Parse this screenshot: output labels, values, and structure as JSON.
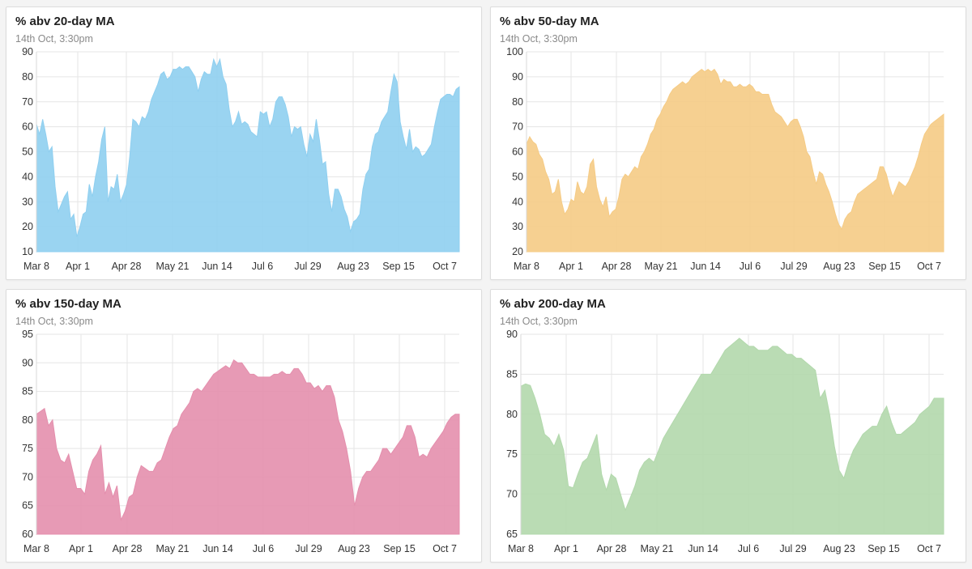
{
  "chart_data": [
    {
      "type": "area",
      "title": "% abv 20-day MA",
      "subtitle": "14th Oct, 3:30pm",
      "color": "#8fcff0",
      "ylim": [
        10,
        90
      ],
      "yticks": [
        10,
        20,
        30,
        40,
        50,
        60,
        70,
        80,
        90
      ],
      "xtick_labels": [
        "Mar 8",
        "Apr 1",
        "Apr 28",
        "May 21",
        "Jun 14",
        "Jul 6",
        "Jul 29",
        "Aug 23",
        "Sep 15",
        "Oct 7"
      ],
      "values": [
        61,
        57,
        63,
        57,
        50,
        52,
        36,
        26,
        29,
        32,
        34,
        23,
        25,
        16,
        20,
        25,
        26,
        37,
        32,
        40,
        46,
        55,
        60,
        30,
        36,
        35,
        41,
        30,
        33,
        37,
        48,
        63,
        62,
        60,
        64,
        63,
        66,
        71,
        74,
        77,
        81,
        82,
        79,
        80,
        83,
        83,
        84,
        83,
        84,
        84,
        82,
        80,
        74,
        79,
        82,
        81,
        81,
        87,
        84,
        87,
        80,
        77,
        67,
        60,
        62,
        66,
        61,
        62,
        61,
        58,
        57,
        56,
        66,
        65,
        66,
        60,
        63,
        70,
        72,
        72,
        69,
        64,
        56,
        60,
        59,
        60,
        53,
        48,
        57,
        54,
        63,
        55,
        45,
        46,
        33,
        26,
        35,
        35,
        32,
        27,
        24,
        18,
        22,
        23,
        25,
        35,
        41,
        43,
        52,
        57,
        58,
        62,
        64,
        66,
        74,
        81,
        78,
        62,
        56,
        51,
        59,
        50,
        52,
        51,
        48,
        49,
        51,
        53,
        60,
        66,
        71,
        72,
        73,
        73,
        72,
        75,
        76
      ]
    },
    {
      "type": "area",
      "title": "% abv 50-day MA",
      "subtitle": "14th Oct, 3:30pm",
      "color": "#f5cb85",
      "ylim": [
        20,
        100
      ],
      "yticks": [
        20,
        30,
        40,
        50,
        60,
        70,
        80,
        90,
        100
      ],
      "xtick_labels": [
        "Mar 8",
        "Apr 1",
        "Apr 28",
        "May 21",
        "Jun 14",
        "Jul 6",
        "Jul 29",
        "Aug 23",
        "Sep 15",
        "Oct 7"
      ],
      "values": [
        63,
        66,
        64,
        63,
        59,
        57,
        52,
        49,
        43,
        44,
        49,
        40,
        35,
        37,
        41,
        40,
        48,
        44,
        43,
        46,
        55,
        57,
        46,
        41,
        38,
        42,
        34,
        36,
        37,
        42,
        49,
        51,
        50,
        52,
        54,
        53,
        58,
        60,
        63,
        67,
        69,
        73,
        75,
        78,
        80,
        83,
        85,
        86,
        87,
        88,
        87,
        88,
        90,
        91,
        92,
        93,
        92,
        93,
        92,
        93,
        91,
        87,
        89,
        88,
        88,
        86,
        86,
        87,
        86,
        86,
        87,
        86,
        84,
        84,
        83,
        83,
        83,
        79,
        76,
        75,
        74,
        72,
        70,
        72,
        73,
        73,
        70,
        66,
        60,
        58,
        52,
        47,
        52,
        51,
        47,
        44,
        40,
        35,
        31,
        29,
        33,
        35,
        36,
        40,
        43,
        44,
        45,
        46,
        47,
        48,
        49,
        54,
        54,
        51,
        46,
        42,
        45,
        48,
        47,
        46,
        48,
        51,
        54,
        58,
        63,
        67,
        69,
        71,
        72,
        73,
        74,
        75
      ]
    },
    {
      "type": "area",
      "title": "% abv 150-day MA",
      "subtitle": "14th Oct, 3:30pm",
      "color": "#e48fad",
      "ylim": [
        60,
        95
      ],
      "yticks": [
        60,
        65,
        70,
        75,
        80,
        85,
        90,
        95
      ],
      "xtick_labels": [
        "Mar 8",
        "Apr 1",
        "Apr 28",
        "May 21",
        "Jun 14",
        "Jul 6",
        "Jul 29",
        "Aug 23",
        "Sep 15",
        "Oct 7"
      ],
      "values": [
        81,
        81.5,
        82,
        79,
        80,
        75,
        73,
        72.5,
        74,
        71,
        68,
        68,
        67,
        71,
        73,
        74,
        75.5,
        67,
        69,
        66.5,
        68.5,
        62.5,
        64,
        66.5,
        67,
        70,
        72,
        71.5,
        71,
        71,
        72.5,
        73,
        75,
        77,
        78.5,
        79,
        81,
        82,
        83,
        85,
        85.5,
        85,
        86,
        87,
        88,
        88.5,
        89,
        89.5,
        89,
        90.5,
        90,
        90,
        89,
        88,
        88,
        87.5,
        87.5,
        87.5,
        87.5,
        88,
        88,
        88.5,
        88,
        88,
        89,
        89,
        88,
        86.5,
        86.5,
        85.5,
        86,
        85,
        86,
        86,
        84,
        80,
        78,
        75,
        71,
        65,
        68,
        70,
        71,
        71,
        72,
        73,
        75,
        75,
        74,
        75,
        76,
        77,
        79,
        79,
        77,
        73.5,
        74,
        73.5,
        75,
        76,
        77,
        78,
        79.5,
        80.5,
        81,
        81
      ]
    },
    {
      "type": "area",
      "title": "% abv 200-day MA",
      "subtitle": "14th Oct, 3:30pm",
      "color": "#b2d8ac",
      "ylim": [
        65,
        90
      ],
      "yticks": [
        65,
        70,
        75,
        80,
        85,
        90
      ],
      "xtick_labels": [
        "Mar 8",
        "Apr 1",
        "Apr 28",
        "May 21",
        "Jun 14",
        "Jul 6",
        "Jul 29",
        "Aug 23",
        "Sep 15",
        "Oct 7"
      ],
      "values": [
        83.5,
        83.8,
        83.6,
        82,
        80,
        77.5,
        77,
        76,
        77.5,
        75.5,
        71,
        70.8,
        72.5,
        74,
        74.5,
        76,
        77.5,
        72.5,
        70.5,
        72.5,
        72,
        70,
        68,
        69.5,
        71,
        73,
        74,
        74.5,
        74,
        75.5,
        77,
        78,
        79,
        80,
        81,
        82,
        83,
        84,
        85,
        85,
        85,
        86,
        87,
        88,
        88.5,
        89,
        89.5,
        89,
        88.5,
        88.5,
        88,
        88,
        88,
        88.5,
        88.5,
        88,
        87.5,
        87.5,
        87,
        87,
        86.5,
        86,
        85.5,
        82,
        83,
        80,
        76,
        73,
        72,
        74,
        75.5,
        76.5,
        77.5,
        78,
        78.5,
        78.5,
        80,
        81,
        79,
        77.5,
        77.5,
        78,
        78.5,
        79,
        80,
        80.5,
        81,
        82,
        82,
        82
      ]
    }
  ]
}
